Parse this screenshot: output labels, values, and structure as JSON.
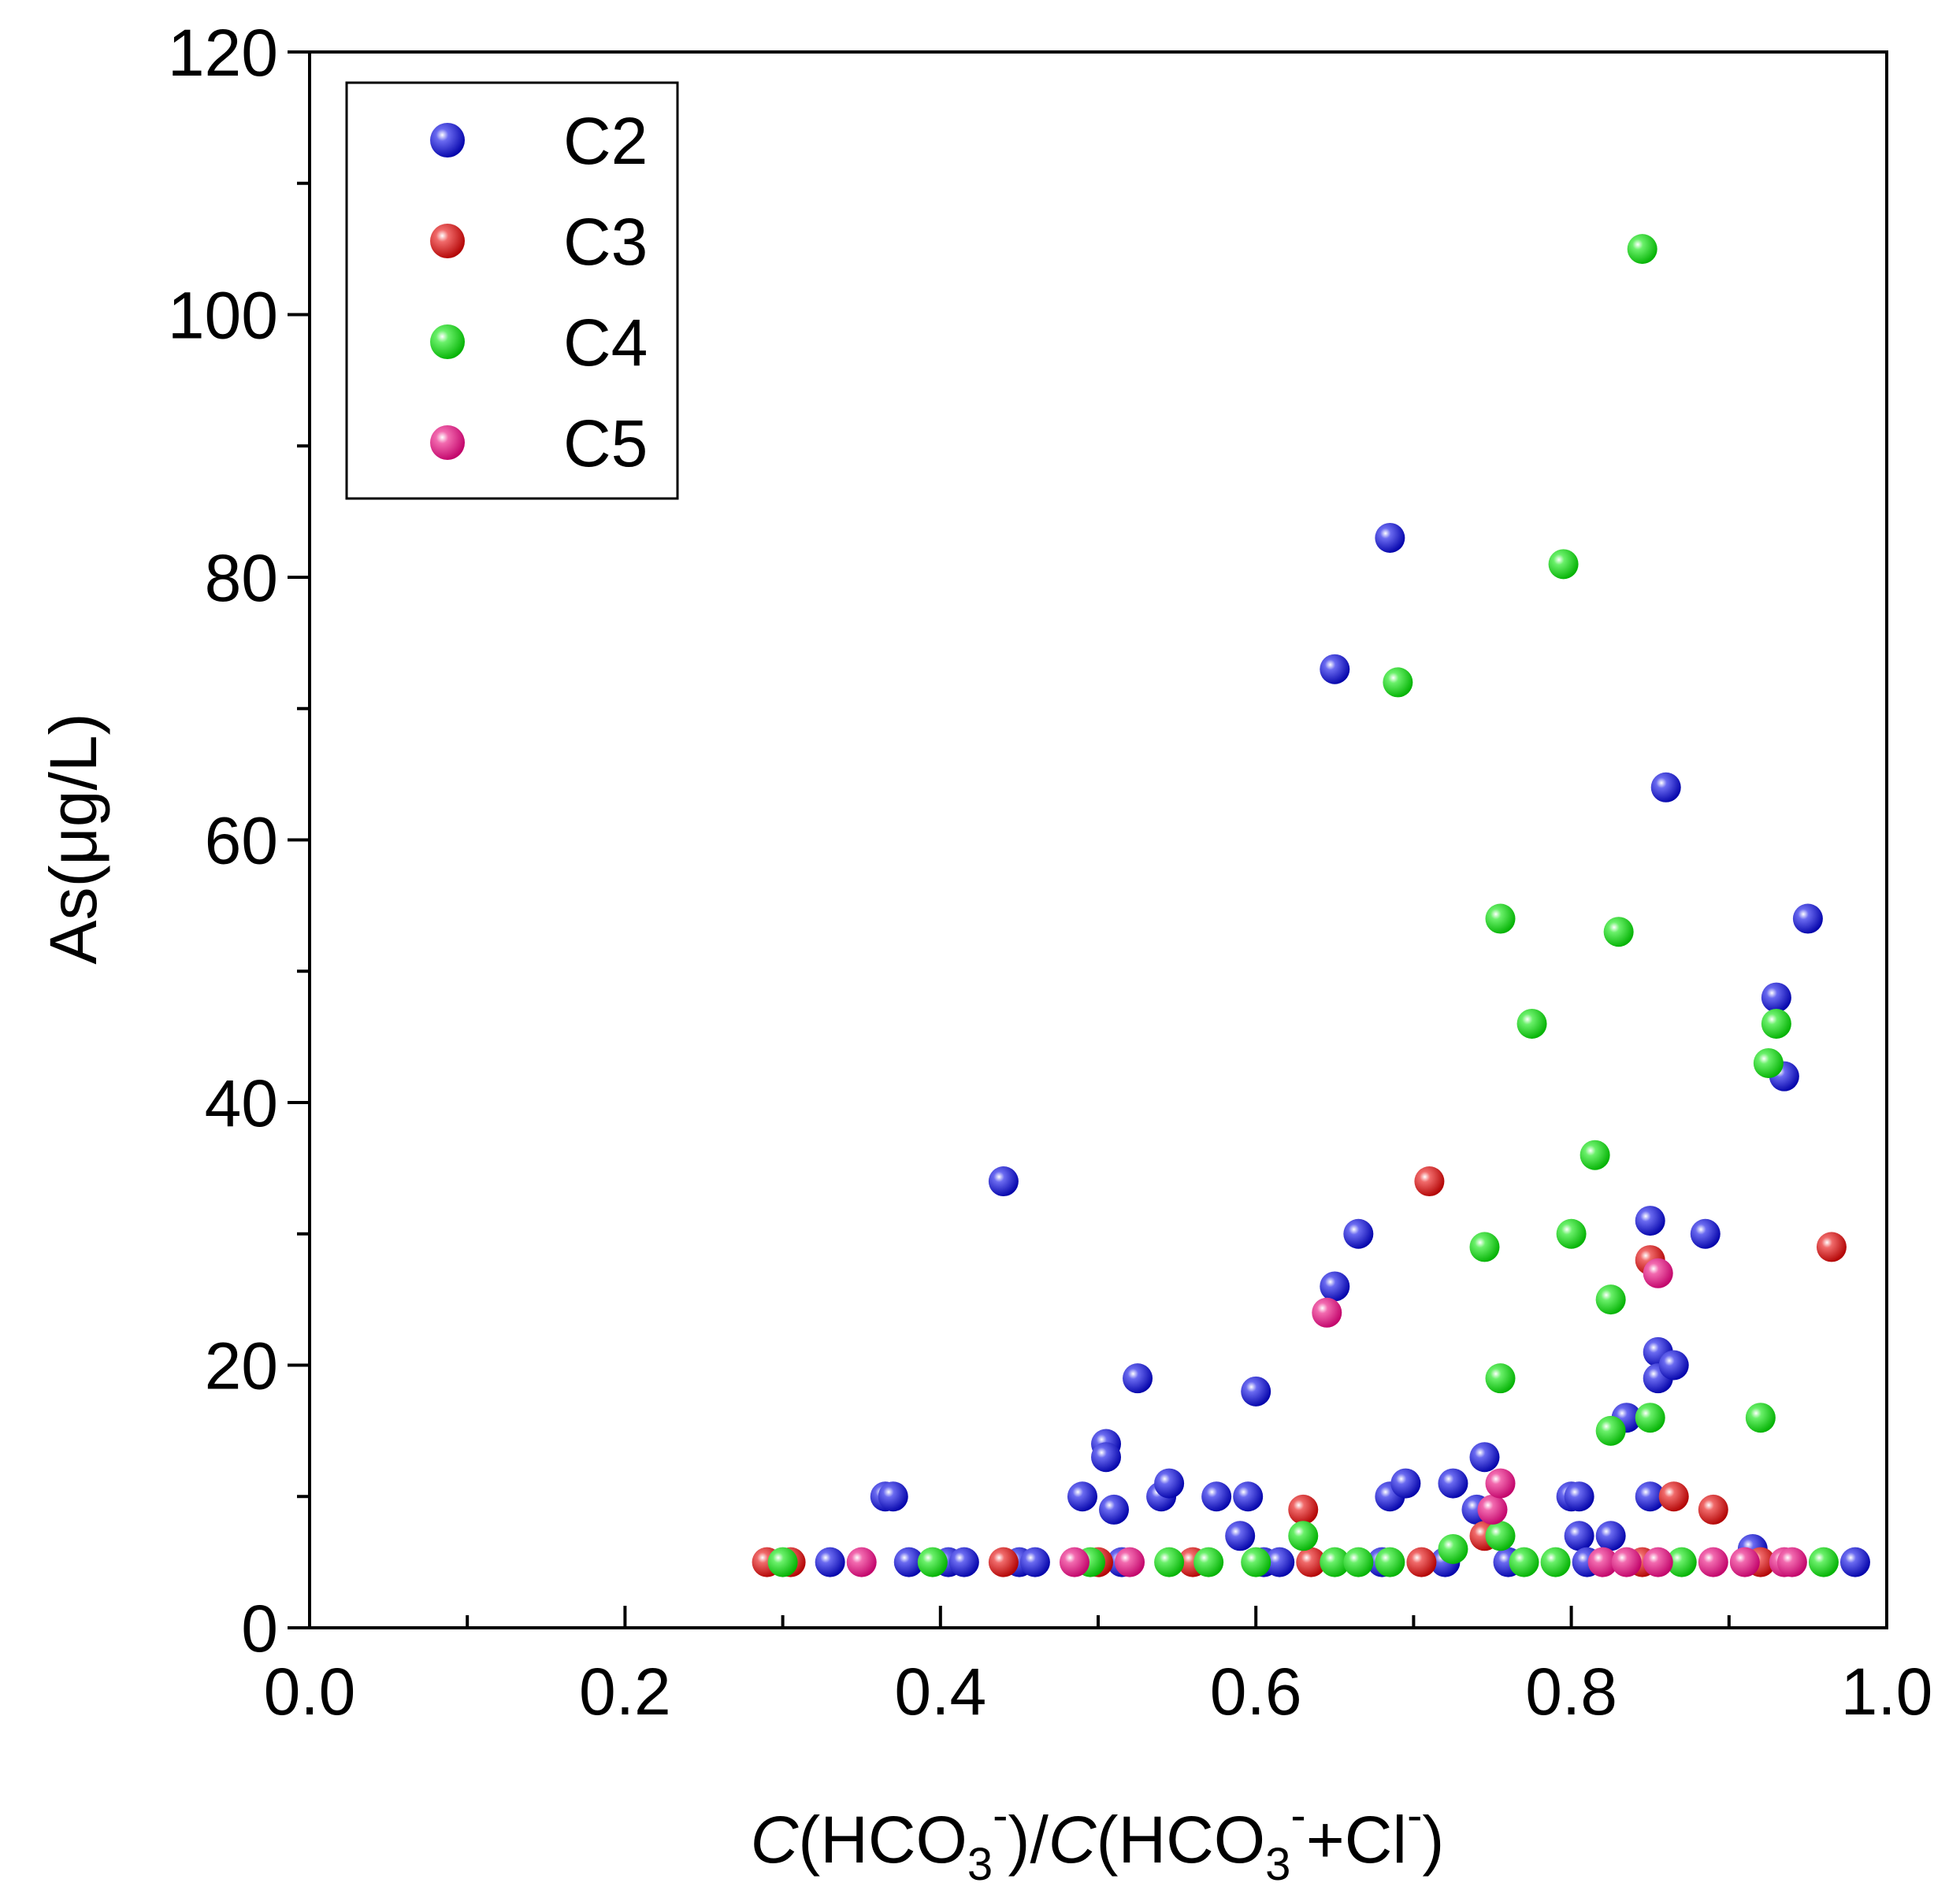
{
  "chart_data": {
    "type": "scatter",
    "title": "",
    "xlabel": {
      "italic_c": "C",
      "open": "(HCO",
      "sub": "3",
      "sup": "-",
      "mid": ")/",
      "italic_c2": "C",
      "open2": "(HCO",
      "sub2": "3",
      "sup2": "-",
      "plus": "+Cl",
      "sup3": "-",
      "close": ")"
    },
    "ylabel": "As(μg/L)",
    "xlim": [
      0.0,
      1.0
    ],
    "ylim": [
      0,
      120
    ],
    "xticks": [
      "0.0",
      "0.2",
      "0.4",
      "0.6",
      "0.8",
      "1.0"
    ],
    "yticks": [
      "0",
      "20",
      "40",
      "60",
      "80",
      "100",
      "120"
    ],
    "legend_position": "top-left",
    "series": [
      {
        "name": "C2",
        "color": "#1010d8",
        "points": [
          [
            0.365,
            10
          ],
          [
            0.37,
            10
          ],
          [
            0.44,
            34
          ],
          [
            0.49,
            10
          ],
          [
            0.505,
            14
          ],
          [
            0.505,
            13
          ],
          [
            0.51,
            9
          ],
          [
            0.525,
            19
          ],
          [
            0.54,
            10
          ],
          [
            0.545,
            11
          ],
          [
            0.575,
            10
          ],
          [
            0.59,
            7
          ],
          [
            0.595,
            10
          ],
          [
            0.6,
            18
          ],
          [
            0.65,
            26
          ],
          [
            0.65,
            73
          ],
          [
            0.665,
            30
          ],
          [
            0.685,
            83
          ],
          [
            0.685,
            10
          ],
          [
            0.695,
            11
          ],
          [
            0.725,
            11
          ],
          [
            0.74,
            9
          ],
          [
            0.745,
            13
          ],
          [
            0.8,
            10
          ],
          [
            0.805,
            10
          ],
          [
            0.805,
            7
          ],
          [
            0.825,
            7
          ],
          [
            0.835,
            16
          ],
          [
            0.85,
            31
          ],
          [
            0.85,
            10
          ],
          [
            0.855,
            21
          ],
          [
            0.855,
            19
          ],
          [
            0.86,
            64
          ],
          [
            0.865,
            20
          ],
          [
            0.885,
            30
          ],
          [
            0.915,
            6
          ],
          [
            0.93,
            48
          ],
          [
            0.935,
            42
          ],
          [
            0.95,
            54
          ],
          [
            0.33,
            5
          ],
          [
            0.38,
            5
          ],
          [
            0.405,
            5
          ],
          [
            0.415,
            5
          ],
          [
            0.45,
            5
          ],
          [
            0.46,
            5
          ],
          [
            0.515,
            5
          ],
          [
            0.605,
            5
          ],
          [
            0.615,
            5
          ],
          [
            0.68,
            5
          ],
          [
            0.72,
            5
          ],
          [
            0.76,
            5
          ],
          [
            0.81,
            5
          ],
          [
            0.98,
            5
          ]
        ]
      },
      {
        "name": "C3",
        "color": "#e81010",
        "points": [
          [
            0.29,
            5
          ],
          [
            0.305,
            5
          ],
          [
            0.44,
            5
          ],
          [
            0.5,
            5
          ],
          [
            0.56,
            5
          ],
          [
            0.63,
            9
          ],
          [
            0.635,
            5
          ],
          [
            0.705,
            5
          ],
          [
            0.71,
            34
          ],
          [
            0.745,
            7
          ],
          [
            0.85,
            28
          ],
          [
            0.865,
            10
          ],
          [
            0.89,
            9
          ],
          [
            0.965,
            29
          ],
          [
            0.845,
            5
          ],
          [
            0.92,
            5
          ]
        ]
      },
      {
        "name": "C4",
        "color": "#10e010",
        "points": [
          [
            0.3,
            5
          ],
          [
            0.395,
            5
          ],
          [
            0.495,
            5
          ],
          [
            0.545,
            5
          ],
          [
            0.57,
            5
          ],
          [
            0.6,
            5
          ],
          [
            0.63,
            7
          ],
          [
            0.65,
            5
          ],
          [
            0.665,
            5
          ],
          [
            0.685,
            5
          ],
          [
            0.69,
            72
          ],
          [
            0.725,
            6
          ],
          [
            0.745,
            29
          ],
          [
            0.755,
            54
          ],
          [
            0.755,
            19
          ],
          [
            0.755,
            7
          ],
          [
            0.775,
            46
          ],
          [
            0.795,
            81
          ],
          [
            0.8,
            30
          ],
          [
            0.815,
            36
          ],
          [
            0.825,
            25
          ],
          [
            0.825,
            15
          ],
          [
            0.83,
            53
          ],
          [
            0.845,
            105
          ],
          [
            0.85,
            16
          ],
          [
            0.92,
            16
          ],
          [
            0.925,
            43
          ],
          [
            0.93,
            46
          ],
          [
            0.96,
            5
          ],
          [
            0.77,
            5
          ],
          [
            0.79,
            5
          ],
          [
            0.87,
            5
          ]
        ]
      },
      {
        "name": "C5",
        "color": "#f01a8c",
        "points": [
          [
            0.35,
            5
          ],
          [
            0.485,
            5
          ],
          [
            0.52,
            5
          ],
          [
            0.645,
            24
          ],
          [
            0.75,
            9
          ],
          [
            0.755,
            11
          ],
          [
            0.82,
            5
          ],
          [
            0.835,
            5
          ],
          [
            0.855,
            27
          ],
          [
            0.855,
            5
          ],
          [
            0.89,
            5
          ],
          [
            0.91,
            5
          ],
          [
            0.935,
            5
          ],
          [
            0.94,
            5
          ]
        ]
      }
    ]
  }
}
